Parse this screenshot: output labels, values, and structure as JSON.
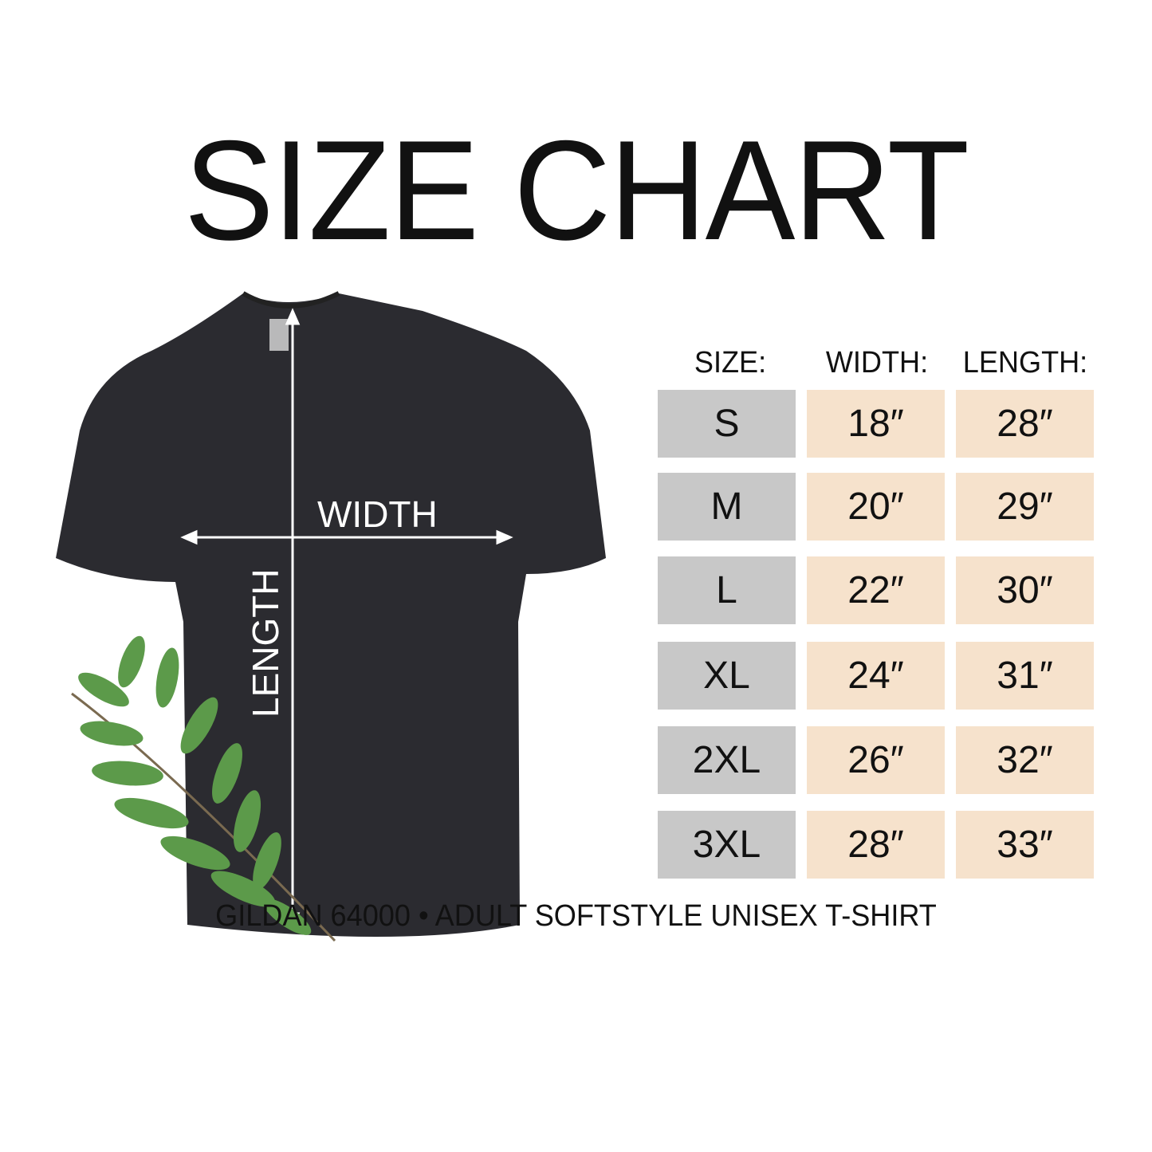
{
  "title": "SIZE CHART",
  "diagram": {
    "width_label": "WIDTH",
    "length_label": "LENGTH",
    "shirt_color": "#2b2b30",
    "leaf-icon": "leaf-branch"
  },
  "table": {
    "headers": [
      "SIZE:",
      "WIDTH:",
      "LENGTH:"
    ],
    "rows": [
      {
        "size": "S",
        "width": "18″",
        "length": "28″"
      },
      {
        "size": "M",
        "width": "20″",
        "length": "29″"
      },
      {
        "size": "L",
        "width": "22″",
        "length": "30″"
      },
      {
        "size": "XL",
        "width": "24″",
        "length": "31″"
      },
      {
        "size": "2XL",
        "width": "26″",
        "length": "32″"
      },
      {
        "size": "3XL",
        "width": "28″",
        "length": "33″"
      }
    ],
    "colors": {
      "size_cell": "#c8c8c8",
      "value_cell": "#f6e2cc"
    }
  },
  "footer": "GILDAN 64000 • ADULT SOFTSTYLE UNISEX T-SHIRT"
}
